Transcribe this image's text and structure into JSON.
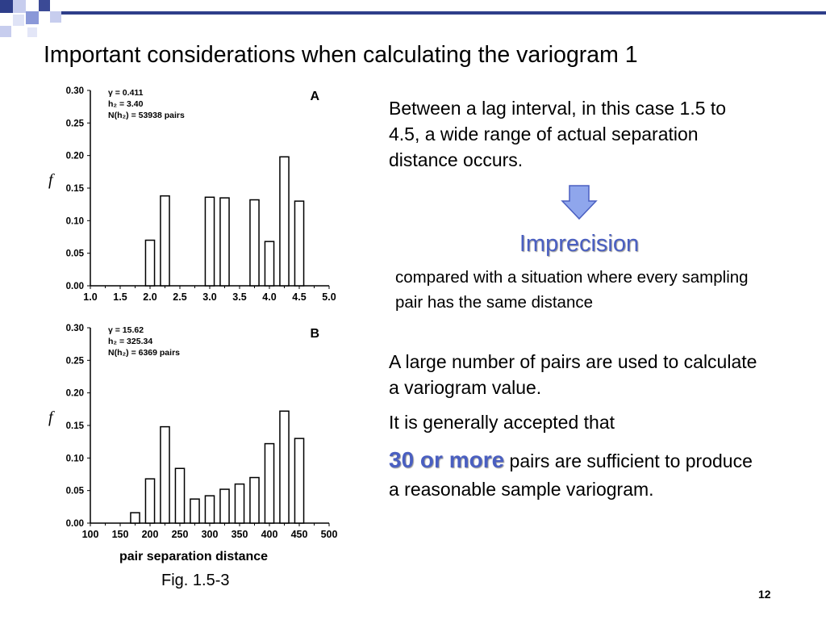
{
  "slide": {
    "title": "Important considerations when calculating the variogram 1",
    "page_number": "12",
    "figure_caption": "Fig. 1.5-3"
  },
  "text": {
    "lag_interval": "Between a lag interval, in this case 1.5 to 4.5, a wide range of actual separation distance occurs.",
    "imprecision": "Imprecision",
    "compared": "compared with a situation where every sampling pair has the same distance",
    "large_number": "A large number of pairs are used to calculate a variogram value.",
    "accepted": "It is generally accepted that",
    "highlight": "30 or more",
    "sufficient": " pairs are sufficient to produce a reasonable sample variogram."
  },
  "colors": {
    "accent": "#4a5fc1",
    "arrow_fill": "#8fa6ec",
    "deco_dark": "#2e3e8a",
    "deco_light": "#c7cdee"
  },
  "chart_data": [
    {
      "type": "bar",
      "panel_label": "A",
      "ylabel": "f",
      "xlabel": "",
      "stats": [
        "γ   = 0.411",
        "h₂  = 3.40",
        "N(h₂) = 53938 pairs"
      ],
      "xlim": [
        1.0,
        5.0
      ],
      "ylim": [
        0,
        0.3
      ],
      "xticks": [
        "1.0",
        "1.5",
        "2.0",
        "2.5",
        "3.0",
        "3.5",
        "4.0",
        "4.5",
        "5.0"
      ],
      "xtick_values": [
        1.0,
        1.5,
        2.0,
        2.5,
        3.0,
        3.5,
        4.0,
        4.5,
        5.0
      ],
      "yticks": [
        "0.00",
        "0.05",
        "0.10",
        "0.15",
        "0.20",
        "0.25",
        "0.30"
      ],
      "ytick_values": [
        0,
        0.05,
        0.1,
        0.15,
        0.2,
        0.25,
        0.3
      ],
      "bar_width": 0.15,
      "bars": [
        {
          "x": 2.0,
          "value": 0.07
        },
        {
          "x": 2.25,
          "value": 0.138
        },
        {
          "x": 3.0,
          "value": 0.136
        },
        {
          "x": 3.25,
          "value": 0.135
        },
        {
          "x": 3.75,
          "value": 0.132
        },
        {
          "x": 4.0,
          "value": 0.068
        },
        {
          "x": 4.25,
          "value": 0.198
        },
        {
          "x": 4.5,
          "value": 0.13
        }
      ]
    },
    {
      "type": "bar",
      "panel_label": "B",
      "ylabel": "f",
      "xlabel": "pair separation distance",
      "stats": [
        "γ   = 15.62",
        "h₂  = 325.34",
        "N(h₂) = 6369 pairs"
      ],
      "xlim": [
        100,
        500
      ],
      "ylim": [
        0,
        0.3
      ],
      "xticks": [
        "100",
        "150",
        "200",
        "250",
        "300",
        "350",
        "400",
        "450",
        "500"
      ],
      "xtick_values": [
        100,
        150,
        200,
        250,
        300,
        350,
        400,
        450,
        500
      ],
      "yticks": [
        "0.00",
        "0.05",
        "0.10",
        "0.15",
        "0.20",
        "0.25",
        "0.30"
      ],
      "ytick_values": [
        0,
        0.05,
        0.1,
        0.15,
        0.2,
        0.25,
        0.3
      ],
      "bar_width": 15,
      "bars": [
        {
          "x": 175,
          "value": 0.016
        },
        {
          "x": 200,
          "value": 0.068
        },
        {
          "x": 225,
          "value": 0.148
        },
        {
          "x": 250,
          "value": 0.084
        },
        {
          "x": 275,
          "value": 0.037
        },
        {
          "x": 300,
          "value": 0.042
        },
        {
          "x": 325,
          "value": 0.052
        },
        {
          "x": 350,
          "value": 0.06
        },
        {
          "x": 375,
          "value": 0.07
        },
        {
          "x": 400,
          "value": 0.122
        },
        {
          "x": 425,
          "value": 0.172
        },
        {
          "x": 450,
          "value": 0.13
        }
      ]
    }
  ]
}
